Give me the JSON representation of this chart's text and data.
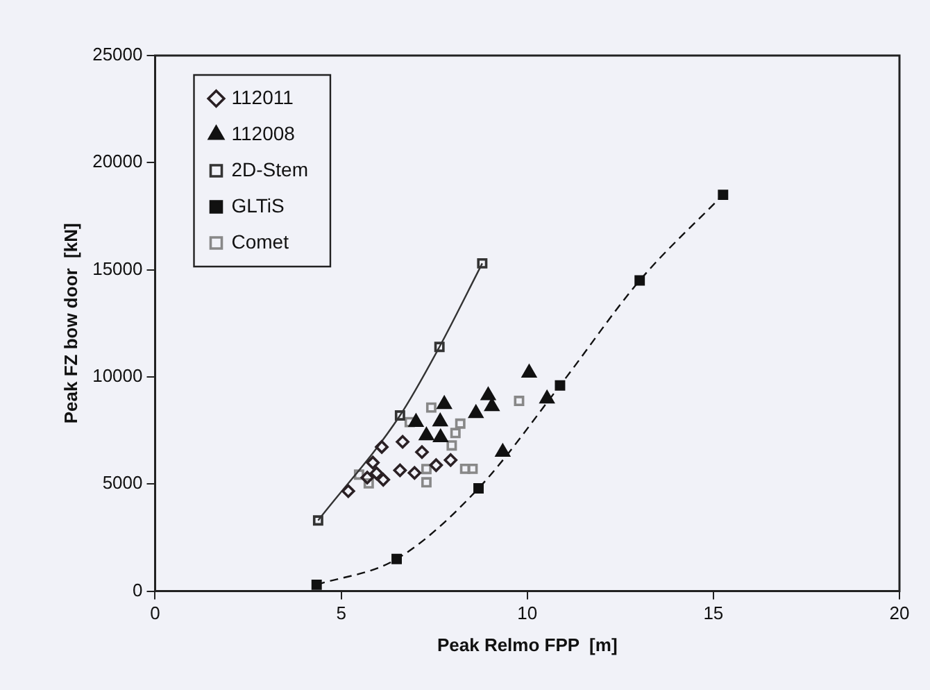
{
  "chart_data": {
    "type": "scatter",
    "xlabel": "Peak Relmo FPP  [m]",
    "ylabel": "Peak FZ bow door  [kN]",
    "xlim": [
      0,
      20
    ],
    "xticks": [
      0,
      5,
      10,
      15,
      20
    ],
    "ylim": [
      0,
      25000
    ],
    "yticks": [
      0,
      5000,
      10000,
      15000,
      20000,
      25000
    ],
    "grid": false,
    "legend": "top left",
    "series": [
      {
        "name": "112011",
        "type": "scatter",
        "marker": "diamond",
        "color": "#2a2024",
        "x": [
          5.19,
          6.09,
          6.65,
          6.58,
          7.94,
          7.17,
          7.55,
          6.97,
          6.13,
          5.85,
          5.95,
          5.7
        ],
        "values": [
          4670,
          6730,
          6970,
          5640,
          6120,
          6490,
          5880,
          5520,
          5200,
          6000,
          5500,
          5300
        ]
      },
      {
        "name": "112008",
        "type": "scatter",
        "marker": "triangle",
        "color": "#111111",
        "x": [
          10.05,
          8.95,
          9.05,
          8.62,
          7.77,
          7.01,
          7.66,
          7.29,
          7.67,
          10.53,
          9.34
        ],
        "values": [
          10190,
          9130,
          8620,
          8300,
          8720,
          7890,
          7910,
          7260,
          7170,
          8980,
          6490
        ]
      },
      {
        "name": "2D-Stem",
        "type": "line",
        "marker": "square",
        "line_style": "solid",
        "color": "#333333",
        "x": [
          4.38,
          6.58,
          7.64,
          8.79
        ],
        "values": [
          3300,
          8200,
          11400,
          15300
        ]
      },
      {
        "name": "GLTiS",
        "type": "line",
        "marker": "square",
        "line_style": "dashed",
        "color": "#111111",
        "x": [
          4.34,
          6.49,
          8.69,
          10.88,
          13.02,
          15.26
        ],
        "values": [
          300,
          1500,
          4800,
          9600,
          14500,
          18500
        ]
      },
      {
        "name": "Comet",
        "type": "scatter",
        "marker": "square",
        "color": "#888888",
        "x": [
          7.42,
          6.84,
          8.2,
          8.07,
          7.97,
          9.78,
          8.53,
          8.33,
          7.29,
          7.29,
          5.48,
          5.74
        ],
        "values": [
          8570,
          7890,
          7820,
          7380,
          6800,
          8880,
          5710,
          5710,
          5080,
          5700,
          5440,
          5030
        ]
      }
    ]
  }
}
